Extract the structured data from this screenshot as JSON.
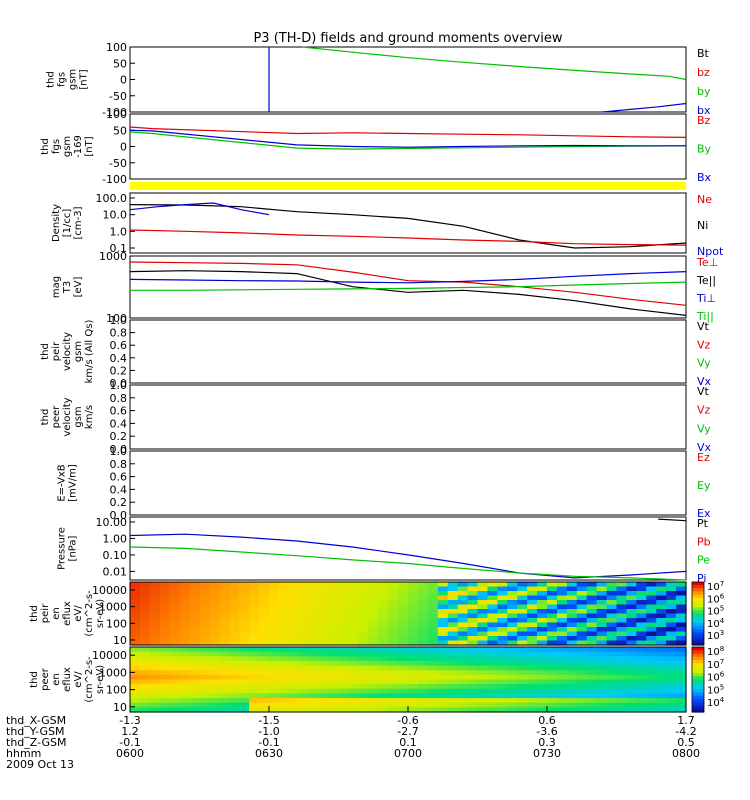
{
  "title": "P3 (TH-D) fields and ground moments overview",
  "colors": {
    "black": "#000000",
    "red": "#e00000",
    "green": "#00c000",
    "blue": "#0000d0",
    "yellow": "#ffff00"
  },
  "xaxis": {
    "ticks": [
      "0600",
      "0630",
      "0700",
      "0730",
      "0800"
    ],
    "rows": [
      {
        "label": "thd_X-GSM",
        "values": [
          "-1.3",
          "-1.5",
          "-0.6",
          "0.6",
          "1.7"
        ]
      },
      {
        "label": "thd_Y-GSM",
        "values": [
          "1.2",
          "-1.0",
          "-2.7",
          "-3.6",
          "-4.2"
        ]
      },
      {
        "label": "thd_Z-GSM",
        "values": [
          "-0.1",
          "-0.1",
          "0.1",
          "0.3",
          "0.5"
        ]
      },
      {
        "label": "hhmm",
        "values": [
          "0600",
          "0630",
          "0700",
          "0730",
          "0800"
        ]
      }
    ],
    "date": "2009 Oct 13"
  },
  "chart_data": [
    {
      "type": "line",
      "panel": "fgs",
      "ylabel": [
        "thd",
        "fgs",
        "gsm",
        "[nT]"
      ],
      "ylim": [
        -100,
        100
      ],
      "yticks": [
        "100",
        "50",
        "0",
        "-50",
        "-100"
      ],
      "legend": [
        {
          "name": "Bt",
          "color": "#000000"
        },
        {
          "name": "bz",
          "color": "#e00000"
        },
        {
          "name": "by",
          "color": "#00c000"
        },
        {
          "name": "bx",
          "color": "#0000d0"
        }
      ],
      "series": [
        {
          "name": "by",
          "x": [
            0.31,
            0.4,
            0.5,
            0.6,
            0.7,
            0.8,
            0.9,
            0.97,
            1.0
          ],
          "y": [
            100,
            84,
            67,
            53,
            40,
            28,
            17,
            10,
            0
          ]
        },
        {
          "name": "bx",
          "x": [
            0.85,
            0.9,
            0.95,
            1.0
          ],
          "y": [
            -100,
            -92,
            -84,
            -74
          ]
        }
      ]
    },
    {
      "type": "line",
      "panel": "fgs_fac",
      "ylabel": [
        "thd",
        "fgs",
        "gsm",
        "-169",
        "[nT]"
      ],
      "ylim": [
        -100,
        100
      ],
      "yticks": [
        "100",
        "50",
        "0",
        "-50",
        "-100"
      ],
      "legend": [
        {
          "name": "Bz",
          "color": "#e00000"
        },
        {
          "name": "By",
          "color": "#00c000"
        },
        {
          "name": "Bx",
          "color": "#0000d0"
        }
      ],
      "series": [
        {
          "name": "Bz",
          "x": [
            0.0,
            0.04,
            0.3,
            0.4,
            0.5,
            0.6,
            0.7,
            0.8,
            0.9,
            1.0
          ],
          "y": [
            60,
            55,
            40,
            42,
            40,
            38,
            36,
            33,
            30,
            28
          ]
        },
        {
          "name": "By",
          "x": [
            0.0,
            0.04,
            0.3,
            0.4,
            0.5,
            0.6,
            0.7,
            0.8,
            0.9,
            1.0
          ],
          "y": [
            45,
            40,
            -5,
            -8,
            -6,
            -4,
            -2,
            0,
            1,
            2
          ]
        },
        {
          "name": "Bx",
          "x": [
            0.0,
            0.04,
            0.3,
            0.4,
            0.5,
            0.6,
            0.7,
            0.8,
            0.9,
            1.0
          ],
          "y": [
            50,
            48,
            5,
            0,
            -2,
            0,
            2,
            3,
            2,
            2
          ]
        }
      ]
    },
    {
      "type": "line",
      "panel": "density",
      "ylabel": [
        "Density",
        "[1/cc]",
        "[cm-3]"
      ],
      "ylog": true,
      "ylim": [
        0.05,
        200
      ],
      "yticks": [
        {
          "label": "100.0",
          "value": 100
        },
        {
          "label": "10.0",
          "value": 10
        },
        {
          "label": "1.0",
          "value": 1
        },
        {
          "label": "0.1",
          "value": 0.1
        }
      ],
      "legend": [
        {
          "name": "Ne",
          "color": "#e00000"
        },
        {
          "name": "Ni",
          "color": "#000000"
        },
        {
          "name": "Npot",
          "color": "#0000d0"
        }
      ],
      "series": [
        {
          "name": "Ni",
          "x": [
            0.0,
            0.1,
            0.2,
            0.3,
            0.4,
            0.5,
            0.6,
            0.7,
            0.8,
            0.9,
            1.0
          ],
          "y": [
            40,
            38,
            30,
            15,
            10,
            6,
            2,
            0.3,
            0.1,
            0.12,
            0.2
          ]
        },
        {
          "name": "Ne",
          "x": [
            0.0,
            0.1,
            0.2,
            0.3,
            0.4,
            0.5,
            0.6,
            0.7,
            0.8,
            0.9,
            1.0
          ],
          "y": [
            1.2,
            1.0,
            0.8,
            0.6,
            0.5,
            0.4,
            0.3,
            0.25,
            0.18,
            0.16,
            0.15
          ]
        },
        {
          "name": "Npot",
          "x": [
            0.0,
            0.05,
            0.1,
            0.15,
            0.2,
            0.25
          ],
          "y": [
            20,
            30,
            40,
            50,
            20,
            10
          ]
        }
      ]
    },
    {
      "type": "line",
      "panel": "temperature",
      "ylabel": [
        "mag",
        "T3",
        "[eV]"
      ],
      "ylog": true,
      "ylim": [
        100,
        1000
      ],
      "yticks": [
        {
          "label": "1000",
          "value": 1000
        },
        {
          "label": "100",
          "value": 100
        }
      ],
      "legend": [
        {
          "name": "Te⊥",
          "color": "#e00000"
        },
        {
          "name": "Te||",
          "color": "#000000"
        },
        {
          "name": "Ti⊥",
          "color": "#0000d0"
        },
        {
          "name": "Ti||",
          "color": "#00c000"
        }
      ],
      "series": [
        {
          "name": "Te⊥",
          "x": [
            0.0,
            0.1,
            0.2,
            0.3,
            0.4,
            0.5,
            0.6,
            0.7,
            0.8,
            0.9,
            1.0
          ],
          "y": [
            800,
            780,
            760,
            720,
            550,
            400,
            380,
            320,
            260,
            200,
            160
          ]
        },
        {
          "name": "Te||",
          "x": [
            0.0,
            0.1,
            0.2,
            0.3,
            0.4,
            0.5,
            0.6,
            0.7,
            0.8,
            0.9,
            1.0
          ],
          "y": [
            560,
            580,
            560,
            520,
            320,
            260,
            280,
            240,
            190,
            140,
            110
          ]
        },
        {
          "name": "Ti⊥",
          "x": [
            0.0,
            0.1,
            0.2,
            0.3,
            0.4,
            0.5,
            0.6,
            0.7,
            0.8,
            0.9,
            1.0
          ],
          "y": [
            420,
            410,
            400,
            395,
            380,
            370,
            390,
            420,
            470,
            520,
            560
          ]
        },
        {
          "name": "Ti||",
          "x": [
            0.0,
            0.1,
            0.2,
            0.3,
            0.4,
            0.5,
            0.6,
            0.7,
            0.8,
            0.9,
            1.0
          ],
          "y": [
            280,
            280,
            285,
            290,
            295,
            300,
            310,
            320,
            340,
            360,
            380
          ]
        }
      ]
    },
    {
      "type": "line",
      "panel": "peir_velocity",
      "ylabel": [
        "thd",
        "peir",
        "velocity",
        "gsm",
        "km/s (All Qs)"
      ],
      "ylim": [
        0,
        1
      ],
      "yticks": [
        "1.0",
        "0.8",
        "0.6",
        "0.4",
        "0.2",
        "0.0"
      ],
      "legend": [
        {
          "name": "Vt",
          "color": "#000000"
        },
        {
          "name": "Vz",
          "color": "#e00000"
        },
        {
          "name": "Vy",
          "color": "#00c000"
        },
        {
          "name": "Vx",
          "color": "#0000d0"
        }
      ],
      "series": []
    },
    {
      "type": "line",
      "panel": "peer_velocity",
      "ylabel": [
        "thd",
        "peer",
        "velocity",
        "gsm",
        "km/s"
      ],
      "ylim": [
        0,
        1
      ],
      "yticks": [
        "1.0",
        "0.8",
        "0.6",
        "0.4",
        "0.2",
        "0.0"
      ],
      "legend": [
        {
          "name": "Vt",
          "color": "#000000"
        },
        {
          "name": "Vz",
          "color": "#e00000"
        },
        {
          "name": "Vy",
          "color": "#00c000"
        },
        {
          "name": "Vx",
          "color": "#0000d0"
        }
      ],
      "series": []
    },
    {
      "type": "line",
      "panel": "efield",
      "ylabel": [
        "E=-VxB",
        "[mV/m]"
      ],
      "ylim": [
        0,
        1
      ],
      "yticks": [
        "1.0",
        "0.8",
        "0.6",
        "0.4",
        "0.2",
        "0.0"
      ],
      "legend": [
        {
          "name": "Ez",
          "color": "#e00000"
        },
        {
          "name": "Ey",
          "color": "#00c000"
        },
        {
          "name": "Ex",
          "color": "#0000d0"
        }
      ],
      "series": []
    },
    {
      "type": "line",
      "panel": "pressure",
      "ylabel": [
        "Pressure",
        "[nPa]"
      ],
      "ylog": true,
      "ylim": [
        0.003,
        20
      ],
      "yticks": [
        {
          "label": "10.00",
          "value": 10
        },
        {
          "label": "1.00",
          "value": 1
        },
        {
          "label": "0.10",
          "value": 0.1
        },
        {
          "label": "0.01",
          "value": 0.01
        }
      ],
      "legend": [
        {
          "name": "Pt",
          "color": "#000000"
        },
        {
          "name": "Pb",
          "color": "#e00000"
        },
        {
          "name": "Pe",
          "color": "#00c000"
        },
        {
          "name": "Pi",
          "color": "#0000d0"
        }
      ],
      "series": [
        {
          "name": "Pi",
          "x": [
            0.0,
            0.1,
            0.2,
            0.3,
            0.4,
            0.5,
            0.6,
            0.7,
            0.8,
            0.9,
            1.0
          ],
          "y": [
            1.5,
            1.8,
            1.2,
            0.7,
            0.3,
            0.1,
            0.03,
            0.008,
            0.004,
            0.006,
            0.01
          ]
        },
        {
          "name": "Pe",
          "x": [
            0.0,
            0.1,
            0.2,
            0.3,
            0.4,
            0.5,
            0.6,
            0.7,
            0.8,
            0.9,
            1.0
          ],
          "y": [
            0.3,
            0.25,
            0.15,
            0.09,
            0.05,
            0.03,
            0.015,
            0.008,
            0.005,
            0.004,
            0.003
          ]
        },
        {
          "name": "Pt",
          "x": [
            0.95,
            1.0
          ],
          "y": [
            15,
            12
          ]
        }
      ]
    },
    {
      "type": "heatmap",
      "panel": "peir_en_eflux",
      "ylabel": [
        "thd",
        "peir",
        "en",
        "eflux",
        "eV/",
        "(cm^2-s-",
        "sr-eV)"
      ],
      "ylog": true,
      "ylim": [
        5,
        30000
      ],
      "yticks": [
        {
          "label": "10000",
          "value": 10000
        },
        {
          "label": "1000",
          "value": 1000
        },
        {
          "label": "100",
          "value": 100
        },
        {
          "label": "10",
          "value": 10
        }
      ],
      "colorbar": [
        "10^7",
        "10^6",
        "10^5",
        "10^4",
        "10^3"
      ]
    },
    {
      "type": "heatmap",
      "panel": "peer_en_eflux",
      "ylabel": [
        "thd",
        "peer",
        "en",
        "eflux",
        "eV/",
        "(cm^2-s-",
        "sr-eV)"
      ],
      "ylog": true,
      "ylim": [
        5,
        30000
      ],
      "yticks": [
        {
          "label": "10000",
          "value": 10000
        },
        {
          "label": "1000",
          "value": 1000
        },
        {
          "label": "100",
          "value": 100
        },
        {
          "label": "10",
          "value": 10
        }
      ],
      "colorbar": [
        "10^8",
        "10^7",
        "10^6",
        "10^5",
        "10^4"
      ]
    }
  ]
}
